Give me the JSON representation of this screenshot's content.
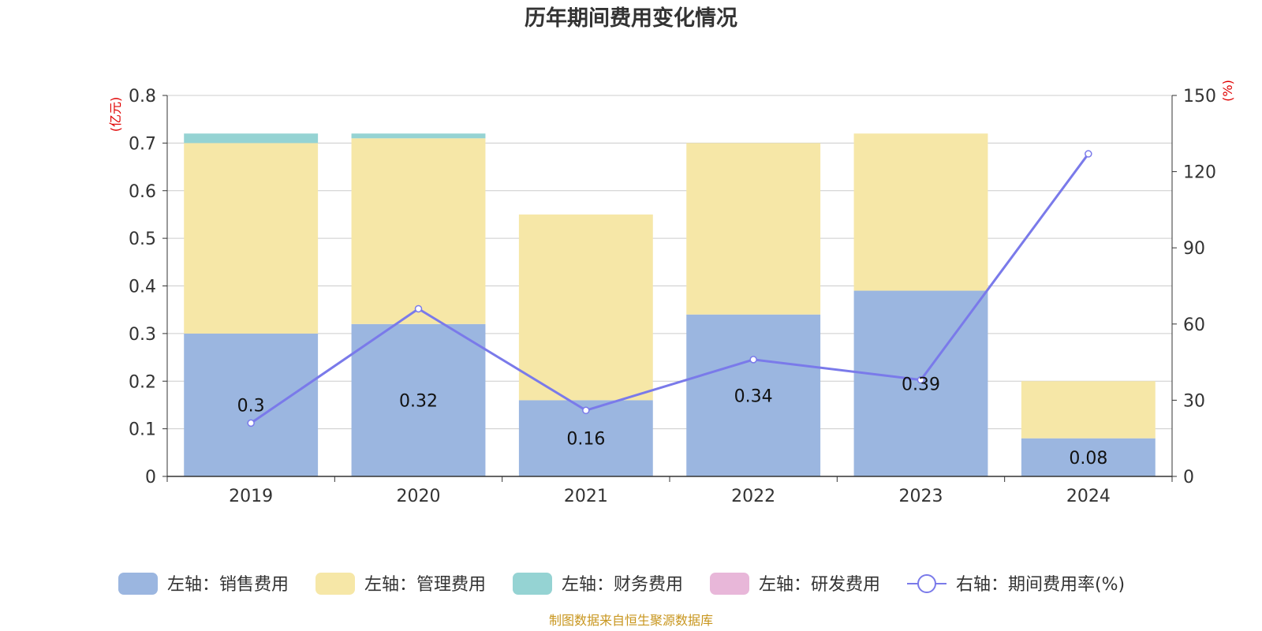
{
  "chart_data": {
    "type": "bar",
    "stacked": true,
    "title": "历年期间费用变化情况",
    "categories": [
      "2019",
      "2020",
      "2021",
      "2022",
      "2023",
      "2024"
    ],
    "series": [
      {
        "name": "左轴：销售费用",
        "axis": "left",
        "color": "#9bb6e0",
        "values": [
          0.3,
          0.32,
          0.16,
          0.34,
          0.39,
          0.08
        ]
      },
      {
        "name": "左轴：管理费用",
        "axis": "left",
        "color": "#f6e7a7",
        "values": [
          0.4,
          0.39,
          0.39,
          0.36,
          0.33,
          0.12
        ]
      },
      {
        "name": "左轴：财务费用",
        "axis": "left",
        "color": "#95d3d3",
        "values": [
          0.02,
          0.01,
          0.0,
          0.0,
          0.0,
          0.0
        ]
      },
      {
        "name": "左轴：研发费用",
        "axis": "left",
        "color": "#e8b7d9",
        "values": [
          0,
          0,
          0,
          0,
          0,
          0
        ]
      }
    ],
    "line": {
      "name": "右轴：期间费用率(%)",
      "axis": "right",
      "color": "#7a7aea",
      "values": [
        21,
        66,
        26,
        46,
        38,
        127
      ]
    },
    "data_labels": [
      "0.3",
      "0.32",
      "0.16",
      "0.34",
      "0.39",
      "0.08"
    ],
    "y_left": {
      "unit": "(亿元)",
      "ylim": [
        0,
        0.8
      ],
      "ticks": [
        "0",
        "0.1",
        "0.2",
        "0.3",
        "0.4",
        "0.5",
        "0.6",
        "0.7",
        "0.8"
      ]
    },
    "y_right": {
      "unit": "(%)",
      "ylim": [
        0,
        150
      ],
      "ticks": [
        "0",
        "30",
        "60",
        "90",
        "120",
        "150"
      ]
    },
    "grid": true,
    "legend_position": "bottom"
  },
  "source_note": "制图数据来自恒生聚源数据库"
}
